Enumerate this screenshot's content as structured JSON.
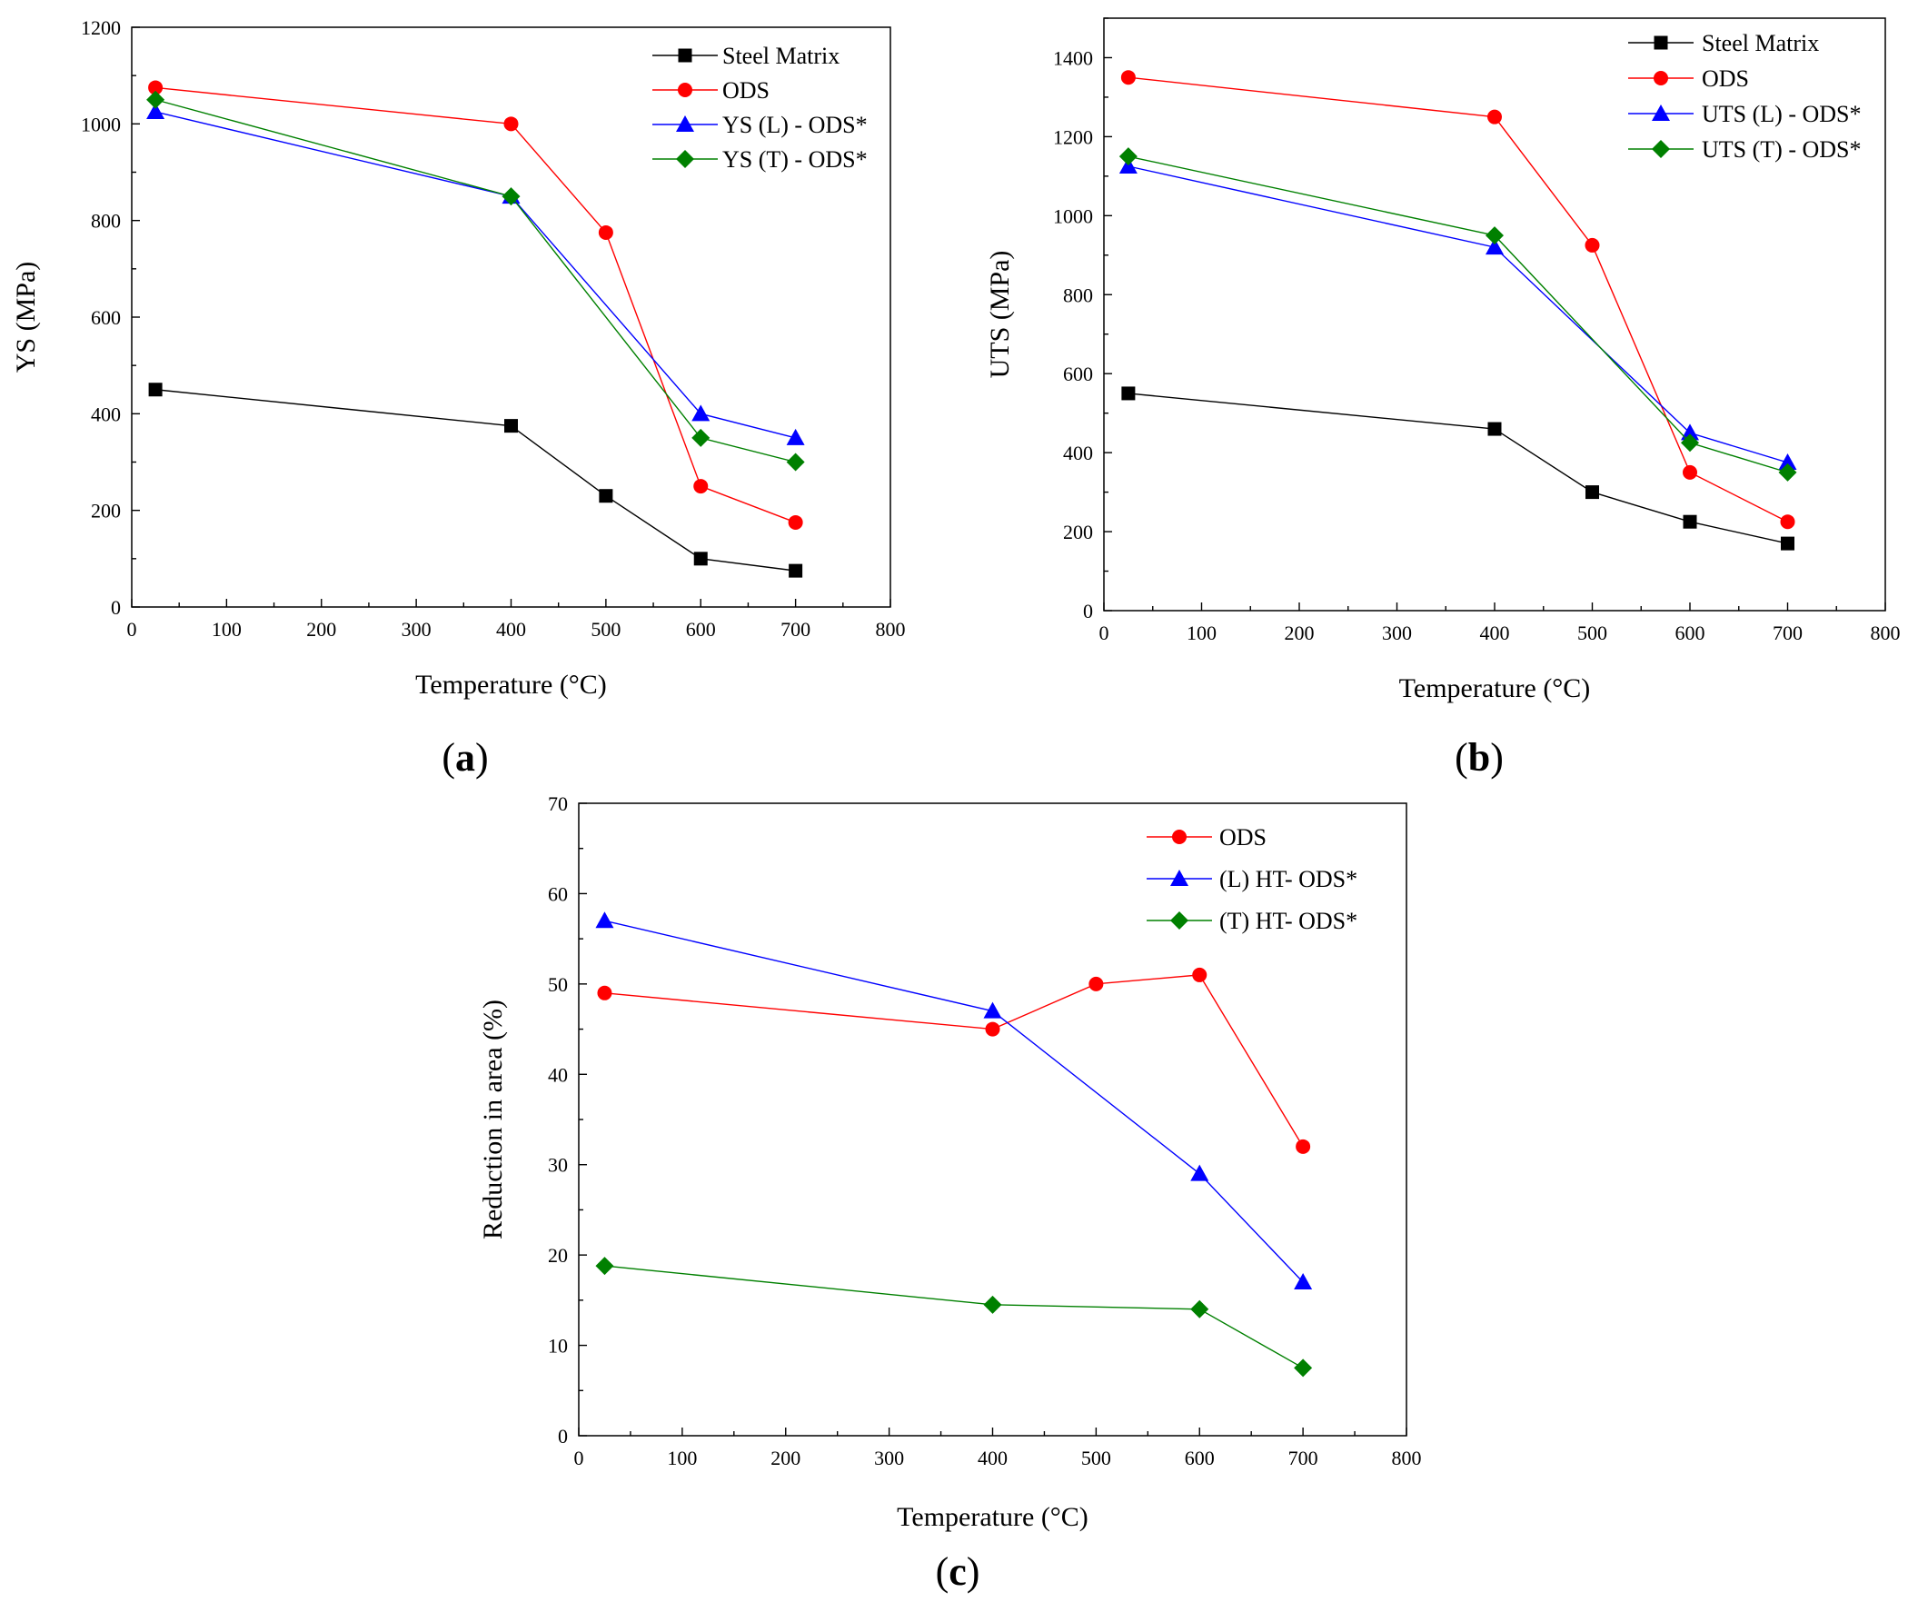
{
  "chart_data": [
    {
      "id": "a",
      "type": "line",
      "panel_label": {
        "open": "(",
        "letter": "a",
        "close": ")"
      },
      "title": "",
      "xlabel": "Temperature (°C)",
      "ylabel": "YS (MPa)",
      "xlim": [
        0,
        800
      ],
      "ylim": [
        0,
        1200
      ],
      "xticks": [
        0,
        100,
        200,
        300,
        400,
        500,
        600,
        700,
        800
      ],
      "yticks": [
        0,
        200,
        400,
        600,
        800,
        1000,
        1200
      ],
      "legend_position": "top-right",
      "grid": false,
      "series": [
        {
          "name": "Steel Matrix",
          "color": "#000000",
          "marker": "square",
          "x": [
            25,
            400,
            500,
            600,
            700
          ],
          "y": [
            450,
            375,
            230,
            100,
            75
          ]
        },
        {
          "name": "ODS",
          "color": "#ff0000",
          "marker": "circle",
          "x": [
            25,
            400,
            500,
            600,
            700
          ],
          "y": [
            1075,
            1000,
            775,
            250,
            175
          ]
        },
        {
          "name": "YS (L) - ODS*",
          "color": "#0000ff",
          "marker": "triangle",
          "x": [
            25,
            400,
            600,
            700
          ],
          "y": [
            1025,
            850,
            400,
            350
          ]
        },
        {
          "name": "YS (T) - ODS*",
          "color": "#008000",
          "marker": "diamond",
          "x": [
            25,
            400,
            600,
            700
          ],
          "y": [
            1050,
            850,
            350,
            300
          ]
        }
      ]
    },
    {
      "id": "b",
      "type": "line",
      "panel_label": {
        "open": "(",
        "letter": "b",
        "close": ")"
      },
      "title": "",
      "xlabel": "Temperature (°C)",
      "ylabel": "UTS (MPa)",
      "xlim": [
        0,
        800
      ],
      "ylim": [
        0,
        1500
      ],
      "xticks": [
        0,
        100,
        200,
        300,
        400,
        500,
        600,
        700,
        800
      ],
      "yticks": [
        0,
        200,
        400,
        600,
        800,
        1000,
        1200,
        1400
      ],
      "legend_position": "top-right",
      "grid": false,
      "series": [
        {
          "name": "Steel Matrix",
          "color": "#000000",
          "marker": "square",
          "x": [
            25,
            400,
            500,
            600,
            700
          ],
          "y": [
            550,
            460,
            300,
            225,
            170
          ]
        },
        {
          "name": "ODS",
          "color": "#ff0000",
          "marker": "circle",
          "x": [
            25,
            400,
            500,
            600,
            700
          ],
          "y": [
            1350,
            1250,
            925,
            350,
            225
          ]
        },
        {
          "name": "UTS (L) - ODS*",
          "color": "#0000ff",
          "marker": "triangle",
          "x": [
            25,
            400,
            600,
            700
          ],
          "y": [
            1125,
            920,
            450,
            375
          ]
        },
        {
          "name": "UTS (T) - ODS*",
          "color": "#008000",
          "marker": "diamond",
          "x": [
            25,
            400,
            600,
            700
          ],
          "y": [
            1150,
            950,
            425,
            350
          ]
        }
      ]
    },
    {
      "id": "c",
      "type": "line",
      "panel_label": {
        "open": "(",
        "letter": "c",
        "close": ")"
      },
      "title": "",
      "xlabel": "Temperature (°C)",
      "ylabel": "Reduction in area (%)",
      "xlim": [
        0,
        800
      ],
      "ylim": [
        0,
        70
      ],
      "xticks": [
        0,
        100,
        200,
        300,
        400,
        500,
        600,
        700,
        800
      ],
      "yticks": [
        0,
        10,
        20,
        30,
        40,
        50,
        60,
        70
      ],
      "legend_position": "top-right",
      "grid": false,
      "series": [
        {
          "name": "ODS",
          "color": "#ff0000",
          "marker": "circle",
          "x": [
            25,
            400,
            500,
            600,
            700
          ],
          "y": [
            49,
            45,
            50,
            51,
            32
          ]
        },
        {
          "name": "(L) HT- ODS*",
          "color": "#0000ff",
          "marker": "triangle",
          "x": [
            25,
            400,
            600,
            700
          ],
          "y": [
            57,
            47,
            29,
            17
          ]
        },
        {
          "name": "(T) HT- ODS*",
          "color": "#008000",
          "marker": "diamond",
          "x": [
            25,
            400,
            600,
            700
          ],
          "y": [
            18.8,
            14.5,
            14,
            7.5
          ]
        }
      ]
    }
  ]
}
